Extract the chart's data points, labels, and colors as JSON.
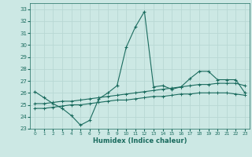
{
  "xlabel": "Humidex (Indice chaleur)",
  "xlim": [
    -0.5,
    23.5
  ],
  "ylim": [
    23,
    33.5
  ],
  "yticks": [
    23,
    24,
    25,
    26,
    27,
    28,
    29,
    30,
    31,
    32,
    33
  ],
  "xticks": [
    0,
    1,
    2,
    3,
    4,
    5,
    6,
    7,
    8,
    9,
    10,
    11,
    12,
    13,
    14,
    15,
    16,
    17,
    18,
    19,
    20,
    21,
    22,
    23
  ],
  "bg_color": "#cce8e4",
  "line_color": "#1a6b5e",
  "grid_color": "#b8d8d4",
  "line1_x": [
    0,
    1,
    2,
    3,
    4,
    5,
    6,
    7,
    8,
    9,
    10,
    11,
    12,
    13,
    14,
    15,
    16,
    17,
    18,
    19,
    20,
    21,
    22,
    23
  ],
  "line1_y": [
    26.1,
    25.6,
    25.1,
    24.7,
    24.1,
    23.3,
    23.7,
    25.5,
    26.0,
    26.6,
    29.8,
    31.5,
    32.8,
    26.5,
    26.6,
    26.3,
    26.5,
    27.2,
    27.8,
    27.8,
    27.1,
    27.1,
    27.1,
    26.0
  ],
  "line2_x": [
    0,
    1,
    2,
    3,
    4,
    5,
    6,
    7,
    8,
    9,
    10,
    11,
    12,
    13,
    14,
    15,
    16,
    17,
    18,
    19,
    20,
    21,
    22,
    23
  ],
  "line2_y": [
    25.1,
    25.1,
    25.2,
    25.3,
    25.3,
    25.4,
    25.5,
    25.6,
    25.7,
    25.8,
    25.9,
    26.0,
    26.1,
    26.2,
    26.3,
    26.4,
    26.5,
    26.6,
    26.7,
    26.7,
    26.8,
    26.8,
    26.8,
    26.6
  ],
  "line3_x": [
    0,
    1,
    2,
    3,
    4,
    5,
    6,
    7,
    8,
    9,
    10,
    11,
    12,
    13,
    14,
    15,
    16,
    17,
    18,
    19,
    20,
    21,
    22,
    23
  ],
  "line3_y": [
    24.7,
    24.7,
    24.8,
    24.9,
    25.0,
    25.0,
    25.1,
    25.2,
    25.3,
    25.4,
    25.4,
    25.5,
    25.6,
    25.7,
    25.7,
    25.8,
    25.9,
    25.9,
    26.0,
    26.0,
    26.0,
    26.0,
    25.9,
    25.8
  ]
}
